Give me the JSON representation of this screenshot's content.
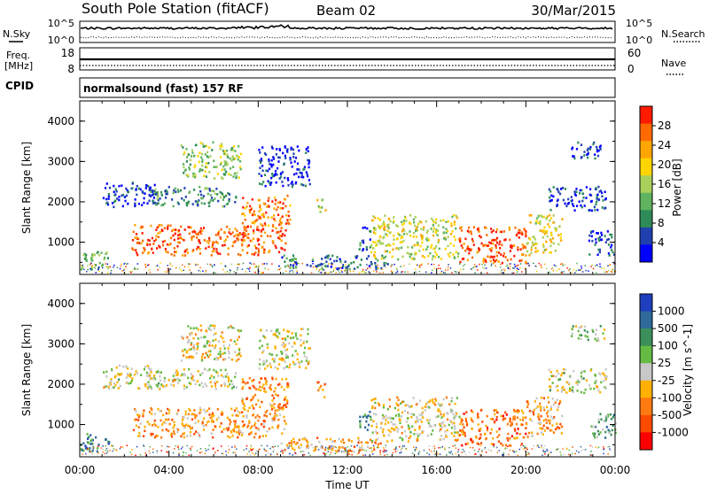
{
  "header": {
    "title": "South Pole Station (fitACF)",
    "beam": "Beam 02",
    "date": "30/Mar/2015"
  },
  "top_panels": {
    "nsky_label": "N.Sky",
    "nsearch_label": "N.Search",
    "freq_label_line1": "Freq.",
    "freq_label_line2": "[MHz]",
    "nave_label": "Nave",
    "cpid_label": "CPID",
    "cpid_value": "normalsound (fast) 157 RF",
    "nsky_ticks": [
      "10^5",
      "10^0"
    ],
    "nsearch_ticks": [
      "10^5",
      "10^0"
    ],
    "freq_ticks": [
      "18",
      "8"
    ],
    "nave_ticks": [
      "60",
      "0"
    ]
  },
  "chart_data": [
    {
      "type": "heatmap",
      "name": "power",
      "xlabel": "",
      "ylabel": "Slant Range [km]",
      "xlim": [
        0,
        24
      ],
      "ylim": [
        200,
        4500
      ],
      "y_ticks": [
        "1000",
        "2000",
        "3000",
        "4000"
      ],
      "colorbar_label": "Power [dB]",
      "colorbar_ticks": [
        "28",
        "24",
        "20",
        "16",
        "12",
        "8",
        "4"
      ],
      "colors": [
        "#0000ff",
        "#2040b0",
        "#2e8b57",
        "#5fb35f",
        "#a8d05a",
        "#ffd400",
        "#ffa500",
        "#ff6a00",
        "#ff1a00"
      ],
      "regions": [
        {
          "t0": 0.0,
          "t1": 1.3,
          "r0": 350,
          "r1": 800,
          "level": 0.4
        },
        {
          "t0": 1.0,
          "t1": 3.5,
          "r0": 1900,
          "r1": 2500,
          "level": 0.12
        },
        {
          "t0": 2.3,
          "t1": 9.2,
          "r0": 700,
          "r1": 1450,
          "level": 0.85
        },
        {
          "t0": 3.0,
          "t1": 7.0,
          "r0": 1900,
          "r1": 2400,
          "level": 0.3
        },
        {
          "t0": 4.5,
          "t1": 7.2,
          "r0": 2600,
          "r1": 3500,
          "level": 0.45
        },
        {
          "t0": 7.2,
          "t1": 9.4,
          "r0": 1400,
          "r1": 2200,
          "level": 0.8
        },
        {
          "t0": 8.0,
          "t1": 10.3,
          "r0": 2400,
          "r1": 3400,
          "level": 0.1
        },
        {
          "t0": 9.0,
          "t1": 13.8,
          "r0": 350,
          "r1": 700,
          "level": 0.25
        },
        {
          "t0": 10.6,
          "t1": 11.0,
          "r0": 1700,
          "r1": 2100,
          "level": 0.55
        },
        {
          "t0": 12.5,
          "t1": 13.0,
          "r0": 800,
          "r1": 1400,
          "level": 0.2
        },
        {
          "t0": 13.0,
          "t1": 17.0,
          "r0": 600,
          "r1": 1700,
          "level": 0.55
        },
        {
          "t0": 17.0,
          "t1": 20.0,
          "r0": 500,
          "r1": 1400,
          "level": 0.9
        },
        {
          "t0": 20.0,
          "t1": 21.6,
          "r0": 700,
          "r1": 1700,
          "level": 0.6
        },
        {
          "t0": 21.0,
          "t1": 23.6,
          "r0": 1800,
          "r1": 2400,
          "level": 0.12
        },
        {
          "t0": 22.0,
          "t1": 23.5,
          "r0": 3100,
          "r1": 3500,
          "level": 0.1
        },
        {
          "t0": 22.8,
          "t1": 24.0,
          "r0": 700,
          "r1": 1300,
          "level": 0.15
        }
      ]
    },
    {
      "type": "heatmap",
      "name": "velocity",
      "xlabel": "Time UT",
      "ylabel": "Slant Range [km]",
      "xlim": [
        0,
        24
      ],
      "ylim": [
        200,
        4500
      ],
      "x_ticks": [
        "00:00",
        "04:00",
        "08:00",
        "12:00",
        "16:00",
        "20:00",
        "00:00"
      ],
      "y_ticks": [
        "1000",
        "2000",
        "3000",
        "4000"
      ],
      "colorbar_label": "Velocity [m s^-1]",
      "colorbar_ticks": [
        "1000",
        "500",
        "100",
        "25",
        "-25",
        "-100",
        "-500",
        "-1000"
      ],
      "colors": [
        "#1f3fbf",
        "#2f6a9a",
        "#3c8f5a",
        "#66bb44",
        "#c8c8c8",
        "#ffb000",
        "#ff7a10",
        "#ff4a00",
        "#ff0000"
      ],
      "regions": [
        {
          "t0": 0.0,
          "t1": 1.3,
          "r0": 350,
          "r1": 800,
          "level": 0.25
        },
        {
          "t0": 1.0,
          "t1": 3.5,
          "r0": 1900,
          "r1": 2500,
          "level": 0.5
        },
        {
          "t0": 2.3,
          "t1": 9.2,
          "r0": 700,
          "r1": 1450,
          "level": 0.68
        },
        {
          "t0": 3.0,
          "t1": 7.0,
          "r0": 1900,
          "r1": 2400,
          "level": 0.5
        },
        {
          "t0": 4.5,
          "t1": 7.2,
          "r0": 2600,
          "r1": 3500,
          "level": 0.55
        },
        {
          "t0": 7.2,
          "t1": 9.4,
          "r0": 1400,
          "r1": 2200,
          "level": 0.72
        },
        {
          "t0": 8.0,
          "t1": 10.3,
          "r0": 2400,
          "r1": 3400,
          "level": 0.5
        },
        {
          "t0": 9.0,
          "t1": 13.8,
          "r0": 350,
          "r1": 700,
          "level": 0.65
        },
        {
          "t0": 10.6,
          "t1": 11.0,
          "r0": 1700,
          "r1": 2100,
          "level": 0.7
        },
        {
          "t0": 12.5,
          "t1": 13.0,
          "r0": 800,
          "r1": 1400,
          "level": 0.3
        },
        {
          "t0": 13.0,
          "t1": 17.0,
          "r0": 600,
          "r1": 1700,
          "level": 0.55
        },
        {
          "t0": 17.0,
          "t1": 20.0,
          "r0": 500,
          "r1": 1400,
          "level": 0.75
        },
        {
          "t0": 20.0,
          "t1": 21.6,
          "r0": 700,
          "r1": 1700,
          "level": 0.65
        },
        {
          "t0": 21.0,
          "t1": 23.6,
          "r0": 1800,
          "r1": 2400,
          "level": 0.5
        },
        {
          "t0": 22.0,
          "t1": 23.5,
          "r0": 3100,
          "r1": 3500,
          "level": 0.45
        },
        {
          "t0": 22.8,
          "t1": 24.0,
          "r0": 700,
          "r1": 1300,
          "level": 0.35
        }
      ]
    }
  ]
}
